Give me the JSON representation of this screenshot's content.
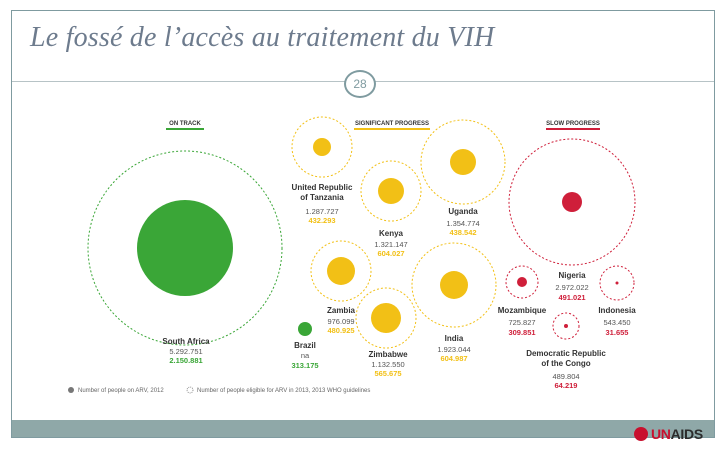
{
  "slide": {
    "title": "Le fossé de l’accès au traitement du VIH",
    "page_number": "28",
    "logo_text": "UNAIDS",
    "logo_mark": "un-emblem-icon"
  },
  "colors": {
    "on_track": "#3aa637",
    "significant": "#f2c016",
    "slow": "#cf1f3a",
    "neutral": "#555555"
  },
  "legend": {
    "headers": {
      "on_track": "ON TRACK",
      "significant": "SIGNIFICANT PROGRESS",
      "slow": "SLOW PROGRESS"
    },
    "on_arv": "Number of people on ARV, 2012",
    "eligible": "Number of people eligible for ARV in 2013, 2013 WHO guidelines"
  },
  "countries": [
    {
      "id": "south-africa",
      "name": "South Africa",
      "eligible": "5.292.751",
      "on_arv": "2.150.881",
      "group": "on_track"
    },
    {
      "id": "brazil",
      "name": "Brazil",
      "eligible": "na",
      "on_arv": "313.175",
      "group": "on_track"
    },
    {
      "id": "tanzania",
      "name": "United Republic of Tanzania",
      "eligible": "1.287.727",
      "on_arv": "432.293",
      "group": "significant"
    },
    {
      "id": "kenya",
      "name": "Kenya",
      "eligible": "1.321.147",
      "on_arv": "604.027",
      "group": "significant"
    },
    {
      "id": "uganda",
      "name": "Uganda",
      "eligible": "1.354.774",
      "on_arv": "438.542",
      "group": "significant"
    },
    {
      "id": "zambia",
      "name": "Zambia",
      "eligible": "976.099",
      "on_arv": "480.925",
      "group": "significant"
    },
    {
      "id": "zimbabwe",
      "name": "Zimbabwe",
      "eligible": "1.132.550",
      "on_arv": "565.675",
      "group": "significant"
    },
    {
      "id": "india",
      "name": "India",
      "eligible": "1.923.044",
      "on_arv": "604.987",
      "group": "significant"
    },
    {
      "id": "nigeria",
      "name": "Nigeria",
      "eligible": "2.972.022",
      "on_arv": "491.021",
      "group": "slow"
    },
    {
      "id": "mozambique",
      "name": "Mozambique",
      "eligible": "725.827",
      "on_arv": "309.851",
      "group": "slow"
    },
    {
      "id": "indonesia",
      "name": "Indonesia",
      "eligible": "543.450",
      "on_arv": "31.655",
      "group": "slow"
    },
    {
      "id": "drc",
      "name": "Democratic Republic of the Congo",
      "eligible": "489.804",
      "on_arv": "64.219",
      "group": "slow"
    }
  ]
}
